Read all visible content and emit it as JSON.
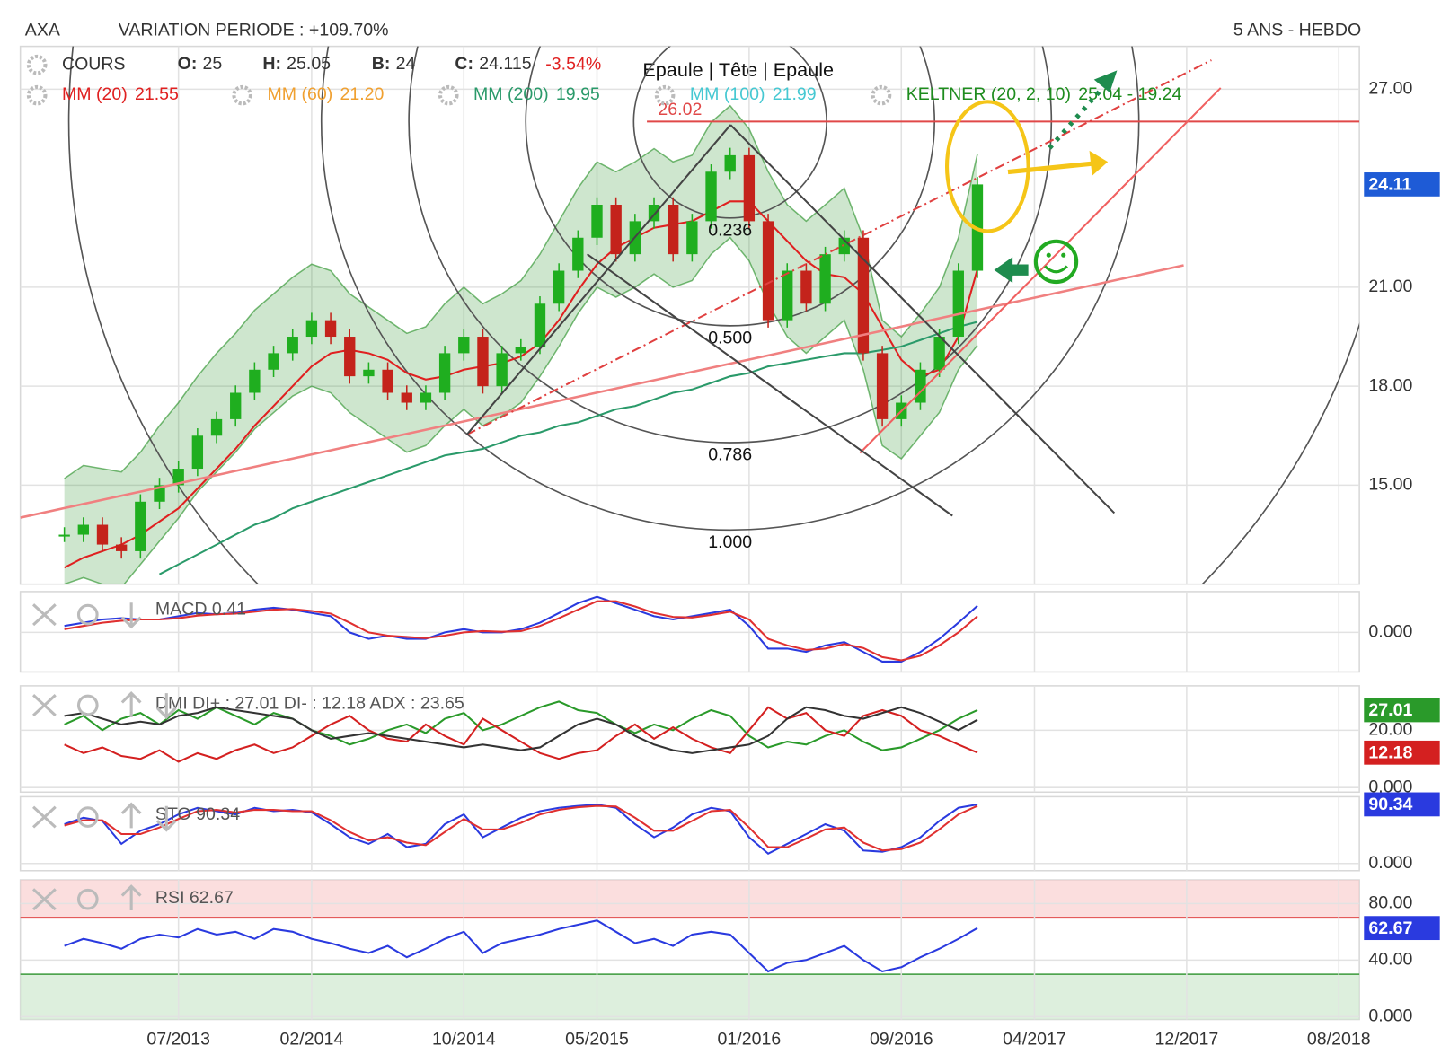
{
  "header": {
    "symbol": "AXA",
    "variation": "VARIATION PERIODE : +109.70%",
    "period": "5 ANS - HEBDO"
  },
  "chart_data": [
    {
      "type": "candlestick",
      "categories": [
        null,
        null,
        null,
        null,
        null,
        null,
        "07/2013",
        null,
        null,
        null,
        null,
        null,
        null,
        "02/2014",
        null,
        null,
        null,
        null,
        null,
        null,
        null,
        "10/2014",
        null,
        null,
        null,
        null,
        null,
        null,
        "05/2015",
        null,
        null,
        null,
        null,
        null,
        null,
        null,
        "01/2016",
        null,
        null,
        null,
        null,
        null,
        null,
        null,
        "09/2016",
        null,
        null,
        null,
        null,
        null,
        null,
        "04/2017",
        null,
        null,
        null,
        null,
        null,
        null,
        null,
        "12/2017",
        null,
        null,
        null,
        null,
        null,
        null,
        null,
        "08/2018",
        null
      ],
      "series": [
        {
          "name": "COURS",
          "up_color": "#1fae1f",
          "down_color": "#c4231b",
          "values": [
            13.5,
            13.8,
            13.2,
            13.0,
            14.5,
            15.0,
            15.5,
            16.5,
            17.0,
            17.8,
            18.5,
            19.0,
            19.5,
            20.0,
            19.5,
            18.3,
            18.5,
            17.8,
            17.5,
            17.8,
            19.0,
            19.5,
            18.0,
            19.0,
            19.2,
            20.5,
            21.5,
            22.5,
            23.5,
            22.0,
            23.0,
            23.5,
            22.0,
            23.0,
            24.5,
            25.0,
            23.0,
            20.0,
            21.5,
            20.5,
            22.0,
            22.5,
            19.0,
            17.0,
            17.5,
            18.5,
            19.5,
            21.5,
            24.115,
            null,
            null,
            null,
            null,
            null,
            null,
            null,
            null,
            null,
            null,
            null,
            null,
            null,
            null,
            null,
            null,
            null,
            null,
            null,
            null
          ]
        },
        {
          "name": "MM (20)",
          "color": "#e02020",
          "values": [
            12.5,
            12.8,
            13.0,
            13.2,
            13.5,
            13.9,
            14.3,
            14.9,
            15.5,
            16.1,
            16.8,
            17.4,
            18.0,
            18.6,
            19.0,
            19.1,
            19.0,
            18.8,
            18.4,
            18.2,
            18.3,
            18.5,
            18.6,
            18.7,
            18.9,
            19.3,
            20.0,
            20.9,
            21.7,
            22.2,
            22.5,
            22.8,
            22.9,
            23.0,
            23.3,
            23.6,
            23.6,
            23.0,
            22.4,
            21.8,
            21.4,
            21.3,
            20.8,
            19.8,
            18.8,
            18.3,
            18.5,
            19.5,
            21.55,
            null,
            null,
            null,
            null,
            null,
            null,
            null,
            null,
            null,
            null,
            null,
            null,
            null,
            null,
            null,
            null,
            null,
            null,
            null,
            null
          ]
        },
        {
          "name": "MM (200)",
          "color": "#2a9a6a",
          "values": [
            null,
            null,
            null,
            null,
            null,
            12.3,
            12.6,
            12.9,
            13.2,
            13.5,
            13.8,
            14.0,
            14.3,
            14.5,
            14.7,
            14.9,
            15.1,
            15.3,
            15.5,
            15.7,
            15.9,
            16.0,
            16.1,
            16.3,
            16.5,
            16.6,
            16.8,
            16.9,
            17.1,
            17.3,
            17.4,
            17.6,
            17.8,
            17.9,
            18.1,
            18.3,
            18.4,
            18.6,
            18.7,
            18.8,
            18.9,
            19.0,
            19.0,
            19.1,
            19.2,
            19.4,
            19.6,
            19.8,
            19.95,
            null,
            null,
            null,
            null,
            null,
            null,
            null,
            null,
            null,
            null,
            null,
            null,
            null,
            null,
            null,
            null,
            null,
            null,
            null,
            null
          ]
        }
      ],
      "band": {
        "name": "KELTNER (20, 2, 10)",
        "color": "#1e8c1e",
        "value_label": "25.04 - 19.24",
        "upper": [
          15.2,
          15.6,
          15.5,
          15.4,
          16.0,
          16.8,
          17.5,
          18.3,
          19.0,
          19.6,
          20.3,
          20.8,
          21.3,
          21.7,
          21.5,
          20.8,
          20.4,
          20.0,
          19.6,
          19.8,
          20.5,
          21.0,
          20.5,
          20.8,
          21.2,
          22.0,
          23.0,
          24.0,
          24.8,
          24.5,
          24.8,
          25.2,
          24.8,
          25.0,
          26.0,
          26.5,
          25.8,
          24.5,
          23.5,
          23.0,
          23.5,
          24.0,
          22.5,
          20.0,
          19.5,
          20.2,
          21.0,
          22.5,
          25.04,
          null,
          null,
          null,
          null,
          null,
          null,
          null,
          null,
          null,
          null,
          null,
          null,
          null,
          null,
          null,
          null,
          null,
          null,
          null,
          null
        ],
        "lower": [
          12.0,
          12.2,
          12.0,
          11.9,
          12.6,
          13.3,
          14.0,
          14.8,
          15.4,
          16.0,
          16.7,
          17.2,
          17.7,
          18.0,
          17.8,
          17.2,
          16.8,
          16.4,
          16.0,
          16.2,
          16.8,
          17.3,
          16.8,
          17.1,
          17.5,
          18.3,
          19.2,
          20.2,
          21.0,
          20.7,
          21.0,
          21.4,
          21.0,
          21.2,
          22.0,
          22.5,
          21.8,
          20.5,
          19.5,
          19.0,
          19.5,
          20.0,
          18.5,
          16.2,
          15.8,
          16.5,
          17.2,
          18.5,
          19.24,
          null,
          null,
          null,
          null,
          null,
          null,
          null,
          null,
          null,
          null,
          null,
          null,
          null,
          null,
          null,
          null,
          null,
          null,
          null,
          null
        ]
      },
      "other_indicators": [
        {
          "name": "MM (60)",
          "value": 21.2,
          "value_label": "21.20",
          "color": "#f0a030"
        },
        {
          "name": "MM (100)",
          "value": 21.99,
          "value_label": "21.99",
          "color": "#45c8d2"
        }
      ],
      "ohlc": [
        {
          "label": "O:",
          "value": 25
        },
        {
          "label": "H:",
          "value": 25.05
        },
        {
          "label": "B:",
          "value": 24
        },
        {
          "label": "C:",
          "value": 24.115
        }
      ],
      "change": -3.54,
      "change_label": "-3.54%",
      "last_value_label": "24.11",
      "last_value_color": "#1e5bd6",
      "ylim": [
        12,
        28.3
      ],
      "yticks": [
        {
          "value": 15,
          "label": "15.00"
        },
        {
          "value": 18,
          "label": "18.00"
        },
        {
          "value": 21,
          "label": "21.00"
        },
        {
          "value": 27,
          "label": "27.00"
        }
      ],
      "grid": true,
      "annotations": {
        "pattern": "Epaule | Tête | Epaule",
        "resistance": 26.02,
        "fib_levels": [
          {
            "value": 0.236,
            "label": "0.236"
          },
          {
            "value": 0.5,
            "label": "0.500"
          },
          {
            "value": 0.786,
            "label": "0.786"
          },
          {
            "value": 1,
            "label": "1.000"
          },
          {
            "value": 1.618,
            "label": null
          }
        ]
      }
    },
    {
      "type": "line",
      "title": "MACD 0.41",
      "ylim": [
        -0.61,
        0.63
      ],
      "yticks": [
        {
          "value": 0,
          "label": "0.000"
        }
      ],
      "series": [
        {
          "name": "MACD",
          "color": "#2a3adf",
          "values": [
            0.1,
            0.15,
            0.2,
            0.22,
            0.2,
            0.2,
            0.25,
            0.3,
            0.28,
            0.3,
            0.35,
            0.38,
            0.35,
            0.3,
            0.25,
            0.0,
            -0.1,
            -0.05,
            -0.1,
            -0.1,
            0.0,
            0.05,
            0.0,
            0.0,
            0.05,
            0.15,
            0.3,
            0.45,
            0.55,
            0.45,
            0.35,
            0.25,
            0.2,
            0.25,
            0.3,
            0.35,
            0.1,
            -0.25,
            -0.25,
            -0.3,
            -0.2,
            -0.15,
            -0.3,
            -0.45,
            -0.45,
            -0.3,
            -0.1,
            0.15,
            0.41
          ]
        },
        {
          "color": "#e03030",
          "values": [
            0.05,
            0.1,
            0.15,
            0.18,
            0.2,
            0.2,
            0.22,
            0.26,
            0.28,
            0.29,
            0.32,
            0.35,
            0.36,
            0.33,
            0.29,
            0.15,
            0.0,
            -0.05,
            -0.07,
            -0.09,
            -0.05,
            0.0,
            0.02,
            0.01,
            0.02,
            0.1,
            0.22,
            0.35,
            0.48,
            0.48,
            0.4,
            0.3,
            0.24,
            0.23,
            0.27,
            0.32,
            0.2,
            -0.1,
            -0.2,
            -0.27,
            -0.25,
            -0.18,
            -0.24,
            -0.38,
            -0.43,
            -0.36,
            -0.2,
            0.0,
            0.25
          ]
        }
      ]
    },
    {
      "type": "line",
      "title": "DMI DI+ : 27.01 DI- : 12.18 ADX : 23.65",
      "ylim": [
        -1.6,
        35.5
      ],
      "yticks": [
        {
          "value": 0,
          "label": "0.000"
        },
        {
          "value": 20,
          "label": "20.00"
        }
      ],
      "series": [
        {
          "name": "DI+",
          "color": "#2a9a2a",
          "tag": true,
          "values": [
            22,
            25,
            20,
            24,
            26,
            22,
            27,
            24,
            28,
            25,
            22,
            26,
            24,
            20,
            18,
            15,
            17,
            20,
            22,
            19,
            24,
            26,
            20,
            22,
            25,
            28,
            30,
            27,
            26,
            22,
            19,
            22,
            20,
            24,
            27,
            25,
            18,
            14,
            16,
            15,
            18,
            20,
            16,
            13,
            14,
            17,
            20,
            24,
            27.01
          ]
        },
        {
          "name": "DI-",
          "color": "#d42020",
          "tag": true,
          "values": [
            15,
            12,
            14,
            11,
            10,
            13,
            9,
            12,
            10,
            13,
            15,
            12,
            14,
            18,
            22,
            25,
            20,
            17,
            16,
            22,
            18,
            15,
            24,
            20,
            16,
            12,
            10,
            12,
            13,
            18,
            22,
            17,
            21,
            17,
            14,
            12,
            20,
            28,
            24,
            26,
            20,
            18,
            25,
            27,
            25,
            20,
            18,
            15,
            12.18
          ]
        },
        {
          "name": "ADX",
          "color": "#333333",
          "values": [
            25,
            26,
            24,
            22,
            23,
            22,
            25,
            26,
            28,
            27,
            26,
            25,
            24,
            20,
            17,
            18,
            19,
            18,
            17,
            16,
            15,
            14,
            15,
            14,
            13,
            14,
            18,
            22,
            24,
            22,
            18,
            15,
            13,
            12,
            13,
            14,
            15,
            18,
            24,
            28,
            27,
            25,
            24,
            26,
            28,
            26,
            23,
            20,
            23.65
          ]
        }
      ]
    },
    {
      "type": "line",
      "title": "STO 90.34",
      "ylim": [
        -11,
        102
      ],
      "yticks": [
        {
          "value": 0,
          "label": "0.000"
        }
      ],
      "series": [
        {
          "name": "STO",
          "color": "#2a3adf",
          "tag": true,
          "values": [
            60,
            70,
            65,
            30,
            50,
            60,
            75,
            85,
            80,
            75,
            85,
            80,
            82,
            78,
            60,
            40,
            30,
            45,
            25,
            30,
            60,
            75,
            40,
            55,
            70,
            80,
            85,
            88,
            90,
            85,
            60,
            40,
            55,
            75,
            85,
            80,
            40,
            15,
            30,
            45,
            60,
            50,
            20,
            18,
            25,
            40,
            65,
            85,
            90.34
          ]
        },
        {
          "color": "#e03030",
          "values": [
            58,
            66,
            66,
            45,
            45,
            55,
            68,
            80,
            82,
            78,
            82,
            82,
            80,
            80,
            66,
            48,
            35,
            40,
            32,
            28,
            48,
            68,
            52,
            52,
            62,
            75,
            82,
            86,
            88,
            87,
            70,
            50,
            50,
            65,
            80,
            82,
            55,
            25,
            25,
            38,
            52,
            55,
            32,
            20,
            22,
            32,
            52,
            75,
            88
          ]
        }
      ]
    },
    {
      "type": "line",
      "title": "RSI 62.67",
      "ylim": [
        -2,
        96.7
      ],
      "overbought": 70,
      "oversold": 30,
      "yticks": [
        {
          "value": 0,
          "label": "0.000"
        },
        {
          "value": 40,
          "label": "40.00"
        },
        {
          "value": 80,
          "label": "80.00"
        }
      ],
      "series": [
        {
          "name": "RSI",
          "color": "#2a3adf",
          "tag": true,
          "values": [
            50,
            55,
            52,
            48,
            55,
            58,
            56,
            62,
            58,
            60,
            55,
            62,
            60,
            55,
            52,
            48,
            45,
            50,
            42,
            48,
            55,
            60,
            45,
            52,
            55,
            58,
            62,
            65,
            68,
            60,
            52,
            55,
            50,
            58,
            60,
            58,
            45,
            32,
            38,
            40,
            45,
            50,
            40,
            32,
            35,
            42,
            48,
            55,
            62.67
          ]
        }
      ]
    }
  ]
}
